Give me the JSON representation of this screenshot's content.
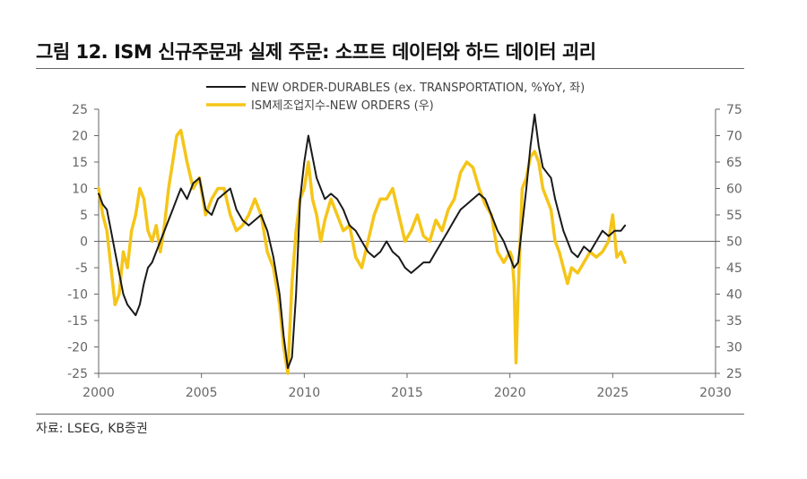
{
  "title": "그림 12. ISM 신규주문과 실제 주문: 소프트 데이터와 하드 데이터 괴리",
  "source": "자료: LSEG, KB증권",
  "chart_data": {
    "type": "line",
    "title": "그림 12. ISM 신규주문과 실제 주문: 소프트 데이터와 하드 데이터 괴리",
    "xlim": [
      2000,
      2030
    ],
    "x_ticks": [
      2000,
      2005,
      2010,
      2015,
      2020,
      2025,
      2030
    ],
    "ylim_left": [
      -25,
      25
    ],
    "y_ticks_left": [
      25,
      20,
      15,
      10,
      5,
      0,
      -5,
      -10,
      -15,
      -20,
      -25
    ],
    "ylim_right": [
      25,
      75
    ],
    "y_ticks_right": [
      75,
      70,
      65,
      60,
      55,
      50,
      45,
      40,
      35,
      30,
      25
    ],
    "legend_position": "top-center",
    "grid": false,
    "series": [
      {
        "name": "NEW ORDER-DURABLES (ex. TRANSPORTATION, %YoY, 좌)",
        "axis": "left",
        "color": "#1a1a1a",
        "x": [
          2000.0,
          2000.2,
          2000.4,
          2000.6,
          2000.8,
          2001.0,
          2001.2,
          2001.4,
          2001.6,
          2001.8,
          2002.0,
          2002.2,
          2002.4,
          2002.6,
          2002.8,
          2003.0,
          2003.2,
          2003.4,
          2003.6,
          2003.8,
          2004.0,
          2004.3,
          2004.6,
          2004.9,
          2005.2,
          2005.5,
          2005.8,
          2006.1,
          2006.4,
          2006.7,
          2007.0,
          2007.3,
          2007.6,
          2007.9,
          2008.2,
          2008.5,
          2008.8,
          2009.0,
          2009.2,
          2009.4,
          2009.6,
          2009.8,
          2010.0,
          2010.2,
          2010.4,
          2010.6,
          2010.8,
          2011.0,
          2011.3,
          2011.6,
          2011.9,
          2012.2,
          2012.5,
          2012.8,
          2013.1,
          2013.4,
          2013.7,
          2014.0,
          2014.3,
          2014.6,
          2014.9,
          2015.2,
          2015.5,
          2015.8,
          2016.1,
          2016.4,
          2016.7,
          2017.0,
          2017.3,
          2017.6,
          2017.9,
          2018.2,
          2018.5,
          2018.8,
          2019.1,
          2019.4,
          2019.7,
          2020.0,
          2020.2,
          2020.4,
          2020.6,
          2020.8,
          2021.0,
          2021.2,
          2021.4,
          2021.6,
          2021.8,
          2022.0,
          2022.2,
          2022.4,
          2022.6,
          2022.8,
          2023.0,
          2023.3,
          2023.6,
          2023.9,
          2024.2,
          2024.5,
          2024.8,
          2025.1,
          2025.4,
          2025.6
        ],
        "values": [
          9,
          7,
          6,
          2,
          -2,
          -6,
          -10,
          -12,
          -13,
          -14,
          -12,
          -8,
          -5,
          -4,
          -2,
          0,
          2,
          4,
          6,
          8,
          10,
          8,
          11,
          12,
          6,
          5,
          8,
          9,
          10,
          6,
          4,
          3,
          4,
          5,
          2,
          -3,
          -10,
          -18,
          -24,
          -22,
          -10,
          8,
          15,
          20,
          16,
          12,
          10,
          8,
          9,
          8,
          6,
          3,
          2,
          0,
          -2,
          -3,
          -2,
          0,
          -2,
          -3,
          -5,
          -6,
          -5,
          -4,
          -4,
          -2,
          0,
          2,
          4,
          6,
          7,
          8,
          9,
          8,
          5,
          2,
          0,
          -3,
          -5,
          -4,
          3,
          10,
          18,
          24,
          18,
          14,
          13,
          12,
          8,
          5,
          2,
          0,
          -2,
          -3,
          -1,
          -2,
          0,
          2,
          1,
          2,
          2,
          3
        ]
      },
      {
        "name": "ISM제조업지수-NEW ORDERS (우)",
        "axis": "right",
        "color": "#f5c518",
        "x": [
          2000.0,
          2000.2,
          2000.4,
          2000.6,
          2000.8,
          2001.0,
          2001.2,
          2001.4,
          2001.6,
          2001.8,
          2002.0,
          2002.2,
          2002.4,
          2002.6,
          2002.8,
          2003.0,
          2003.2,
          2003.4,
          2003.6,
          2003.8,
          2004.0,
          2004.3,
          2004.6,
          2004.9,
          2005.2,
          2005.5,
          2005.8,
          2006.1,
          2006.4,
          2006.7,
          2007.0,
          2007.3,
          2007.6,
          2007.9,
          2008.2,
          2008.5,
          2008.8,
          2009.0,
          2009.2,
          2009.4,
          2009.6,
          2009.8,
          2010.0,
          2010.2,
          2010.4,
          2010.6,
          2010.8,
          2011.0,
          2011.3,
          2011.6,
          2011.9,
          2012.2,
          2012.5,
          2012.8,
          2013.1,
          2013.4,
          2013.7,
          2014.0,
          2014.3,
          2014.6,
          2014.9,
          2015.2,
          2015.5,
          2015.8,
          2016.1,
          2016.4,
          2016.7,
          2017.0,
          2017.3,
          2017.6,
          2017.9,
          2018.2,
          2018.5,
          2018.8,
          2019.1,
          2019.4,
          2019.7,
          2020.0,
          2020.1,
          2020.2,
          2020.3,
          2020.4,
          2020.6,
          2020.8,
          2021.0,
          2021.2,
          2021.4,
          2021.6,
          2021.8,
          2022.0,
          2022.2,
          2022.4,
          2022.6,
          2022.8,
          2023.0,
          2023.3,
          2023.6,
          2023.9,
          2024.2,
          2024.5,
          2024.8,
          2025.0,
          2025.2,
          2025.4,
          2025.6
        ],
        "values": [
          60,
          55,
          52,
          45,
          38,
          40,
          48,
          45,
          52,
          55,
          60,
          58,
          52,
          50,
          53,
          48,
          53,
          60,
          65,
          70,
          71,
          65,
          60,
          62,
          55,
          58,
          60,
          60,
          55,
          52,
          53,
          55,
          58,
          55,
          48,
          45,
          38,
          30,
          25,
          42,
          52,
          58,
          60,
          65,
          58,
          55,
          50,
          54,
          58,
          55,
          52,
          53,
          47,
          45,
          50,
          55,
          58,
          58,
          60,
          55,
          50,
          52,
          55,
          51,
          50,
          54,
          52,
          56,
          58,
          63,
          65,
          64,
          60,
          57,
          55,
          48,
          46,
          48,
          47,
          42,
          27,
          40,
          60,
          62,
          66,
          67,
          65,
          60,
          58,
          56,
          50,
          48,
          45,
          42,
          45,
          44,
          46,
          48,
          47,
          48,
          50,
          55,
          47,
          48,
          46
        ]
      }
    ]
  }
}
